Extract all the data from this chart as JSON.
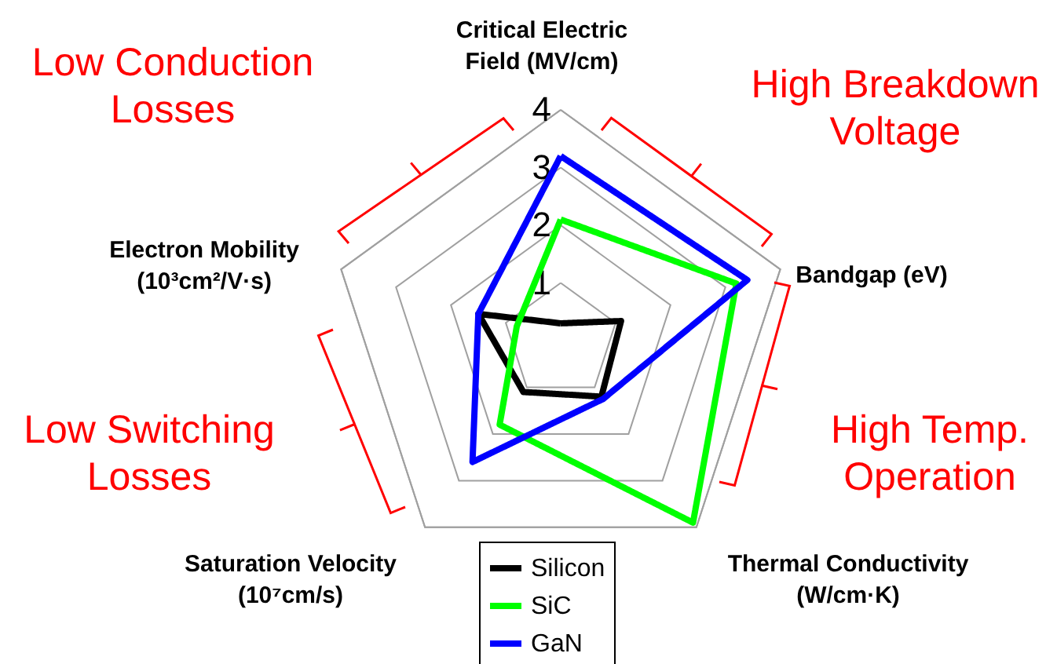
{
  "chart_data": {
    "type": "radar",
    "categories": [
      "Critical Electric\nField (MV/cm)",
      "Bandgap (eV)",
      "Thermal Conductivity\n(W/cm·K)",
      "Saturation Velocity\n(10⁷cm/s)",
      "Electron Mobility\n(10³cm²/V·s)"
    ],
    "series": [
      {
        "name": "Silicon",
        "color": "#000000",
        "values": [
          0.3,
          1.1,
          1.2,
          1.1,
          1.5
        ]
      },
      {
        "name": "SiC",
        "color": "#00ff00",
        "values": [
          2.1,
          3.2,
          3.9,
          1.8,
          0.8
        ]
      },
      {
        "name": "GaN",
        "color": "#0000ff",
        "values": [
          3.2,
          3.4,
          1.25,
          2.6,
          1.5
        ]
      }
    ],
    "ylim": [
      0,
      4
    ],
    "yticks": [
      1,
      2,
      3,
      4
    ],
    "grid": true,
    "legend": "bottom",
    "marker": "none",
    "line_style": "solid",
    "annotations": [
      "Low Conduction\nLosses",
      "High Breakdown\nVoltage",
      "High Temp.\nOperation",
      "Low Switching\nLosses"
    ]
  }
}
